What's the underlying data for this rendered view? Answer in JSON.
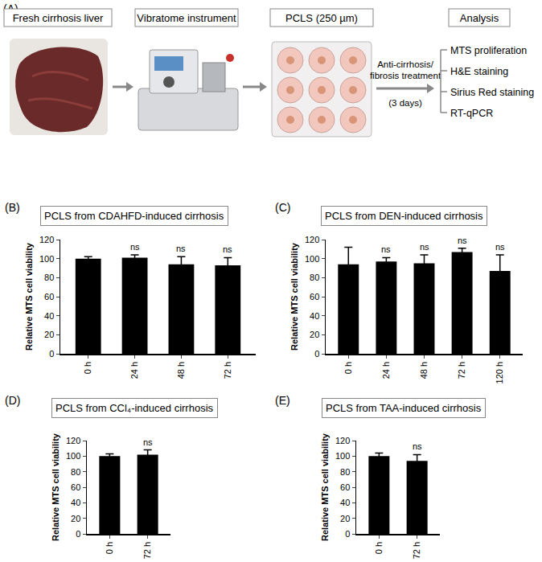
{
  "diagram": {
    "label": "(A)",
    "steps": [
      "Fresh cirrhosis liver",
      "Vibratome instrument",
      "PCLS (250 µm)"
    ],
    "treatment": {
      "lines": [
        "Anti-cirrhosis/",
        "fibrosis treatment"
      ],
      "duration": "(3 days)"
    },
    "analysis": {
      "title": "Analysis",
      "items": [
        "MTS proliferation",
        "H&E staining",
        "Sirius Red staining",
        "RT-qPCR"
      ]
    }
  },
  "chart_data": [
    {
      "type": "bar",
      "panel": "(B)",
      "title": "PCLS from CDAHFD-induced cirrhosis",
      "y_label": "Relative MTS cell viability",
      "categories": [
        "0 h",
        "24 h",
        "48 h",
        "72 h"
      ],
      "values": [
        100,
        101,
        94,
        93
      ],
      "error": [
        2,
        3,
        8,
        8
      ],
      "significance": [
        null,
        "ns",
        "ns",
        "ns"
      ],
      "color": "#000000",
      "ylim": [
        0,
        120
      ],
      "yticks": [
        0,
        20,
        40,
        60,
        80,
        100,
        120
      ],
      "grid": false
    },
    {
      "type": "bar",
      "panel": "(C)",
      "title": "PCLS from DEN-induced cirrhosis",
      "y_label": "Relative MTS cell viability",
      "categories": [
        "0 h",
        "24 h",
        "48 h",
        "72 h",
        "120 h"
      ],
      "values": [
        94,
        97,
        95,
        107,
        87
      ],
      "error": [
        18,
        4,
        9,
        4,
        17
      ],
      "significance": [
        null,
        "ns",
        "ns",
        "ns",
        "ns"
      ],
      "color": "#000000",
      "ylim": [
        0,
        120
      ],
      "yticks": [
        0,
        20,
        40,
        60,
        80,
        100,
        120
      ],
      "grid": false
    },
    {
      "type": "bar",
      "panel": "(D)",
      "title": "PCLS from CCl₄-induced cirrhosis",
      "y_label": "Relative MTS cell viability",
      "categories": [
        "0 h",
        "72 h"
      ],
      "values": [
        100,
        102
      ],
      "error": [
        3,
        6
      ],
      "significance": [
        null,
        "ns"
      ],
      "color": "#000000",
      "ylim": [
        0,
        120
      ],
      "yticks": [
        0,
        20,
        40,
        60,
        80,
        100,
        120
      ],
      "grid": false
    },
    {
      "type": "bar",
      "panel": "(E)",
      "title": "PCLS from TAA-induced cirrhosis",
      "y_label": "Relative MTS cell viability",
      "categories": [
        "0 h",
        "72 h"
      ],
      "values": [
        100,
        94
      ],
      "error": [
        4,
        8
      ],
      "significance": [
        null,
        "ns"
      ],
      "color": "#000000",
      "ylim": [
        0,
        120
      ],
      "yticks": [
        0,
        20,
        40,
        60,
        80,
        100,
        120
      ],
      "grid": false
    }
  ]
}
